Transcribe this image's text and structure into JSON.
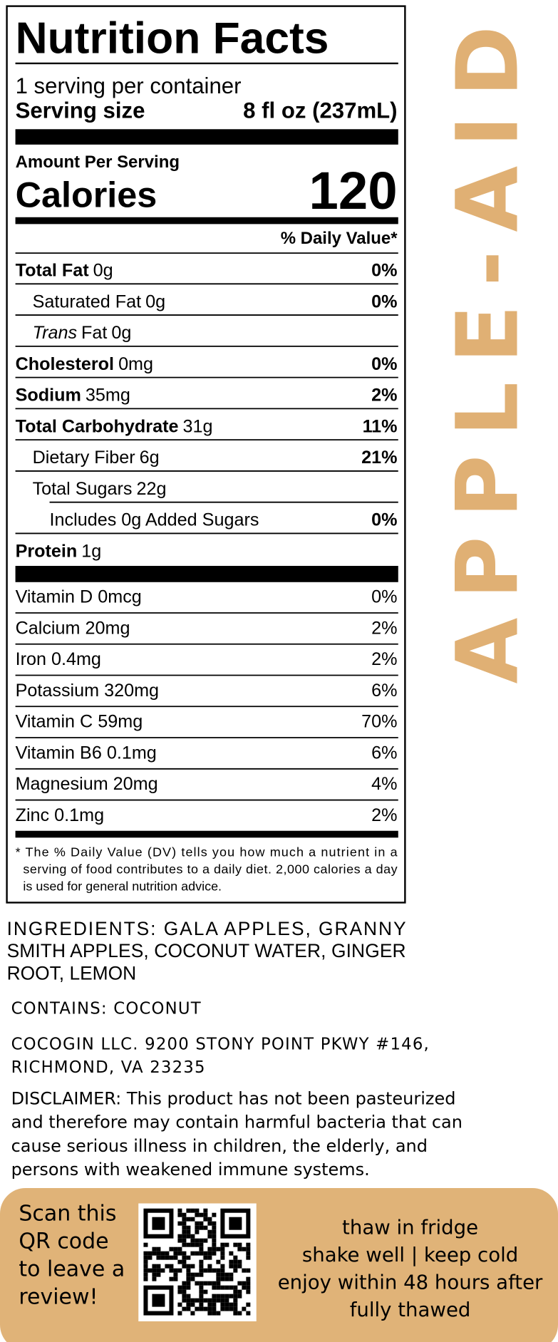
{
  "label": {
    "title": "Nutrition Facts",
    "servings": "1 serving per container",
    "serving_size_label": "Serving size",
    "serving_size": "8 fl oz (237mL)",
    "amount_per_serving": "Amount Per Serving",
    "calories_label": "Calories",
    "calories": 120,
    "daily_value_header": "% Daily Value*",
    "nutrients": [
      {
        "name": "Total Fat",
        "amount": "0g",
        "dv": "0%"
      },
      {
        "name": "Saturated Fat",
        "amount": "0g",
        "dv": "0%"
      },
      {
        "name_prefix": "Trans",
        "name": "Fat",
        "amount": "0g"
      },
      {
        "name": "Cholesterol",
        "amount": "0mg",
        "dv": "0%"
      },
      {
        "name": "Sodium",
        "amount": "35mg",
        "dv": "2%"
      },
      {
        "name": "Total Carbohydrate",
        "amount": "31g",
        "dv": "11%"
      },
      {
        "name": "Dietary Fiber",
        "amount": "6g",
        "dv": "21%"
      },
      {
        "name": "Total Sugars",
        "amount": "22g"
      },
      {
        "name": "Includes 0g Added Sugars",
        "amount": "",
        "dv": "0%"
      },
      {
        "name": "Protein",
        "amount": "1g"
      }
    ],
    "vitamins": [
      {
        "name": "Vitamin D 0mcg",
        "dv": "0%"
      },
      {
        "name": "Calcium 20mg",
        "dv": "2%"
      },
      {
        "name": "Iron 0.4mg",
        "dv": "2%"
      },
      {
        "name": "Potassium 320mg",
        "dv": "6%"
      },
      {
        "name": "Vitamin C 59mg",
        "dv": "70%"
      },
      {
        "name": "Vitamin B6 0.1mg",
        "dv": "6%"
      },
      {
        "name": "Magnesium 20mg",
        "dv": "4%"
      },
      {
        "name": "Zinc 0.1mg",
        "dv": "2%"
      }
    ],
    "footnote": [
      "* The % Daily Value (DV) tells you how much a nutrient in a",
      "serving of food contributes to a daily diet. 2,000 calories a day",
      "is used for general nutrition advice."
    ]
  },
  "ingredients": [
    "INGREDIENTS: GALA APPLES, GRANNY",
    "SMITH APPLES, COCONUT WATER, GINGER",
    "ROOT, LEMON"
  ],
  "contains": "CONTAINS: COCONUT",
  "address": [
    "COCOGIN LLC. 9200 STONY POINT PKWY #146,",
    "RICHMOND, VA 23235"
  ],
  "disclaimer": [
    "DISCLAIMER: This product has not been pasteurized",
    "and therefore may contain harmful bacteria that can",
    "cause serious illness in children, the elderly, and",
    "persons with weakened immune systems."
  ],
  "brand": "APPLE-AID",
  "qr_prompt": [
    "Scan this",
    "QR code",
    "to leave a",
    "review!"
  ],
  "instructions": [
    "thaw in fridge",
    "shake well | keep cold",
    "enjoy within 48 hours after",
    "fully thawed"
  ]
}
